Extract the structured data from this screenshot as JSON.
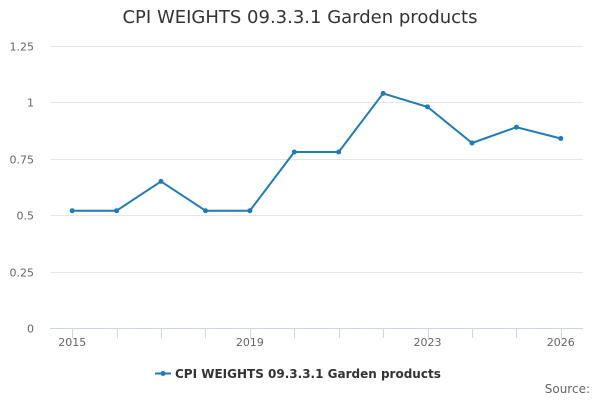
{
  "chart_data": {
    "type": "line",
    "title": "CPI WEIGHTS 09.3.3.1 Garden products",
    "xlabel": "",
    "ylabel": "",
    "x": [
      2015,
      2016,
      2017,
      2018,
      2019,
      2020,
      2021,
      2022,
      2023,
      2024,
      2025,
      2026
    ],
    "x_tick_labels": [
      "2015",
      "2019",
      "2023",
      "2026"
    ],
    "x_tick_values": [
      2015,
      2019,
      2023,
      2026
    ],
    "y_ticks": [
      0,
      0.25,
      0.5,
      0.75,
      1,
      1.25
    ],
    "y_tick_labels": [
      "0",
      "0.25",
      "0.5",
      "0.75",
      "1",
      "1.25"
    ],
    "ylim": [
      0,
      1.25
    ],
    "grid": true,
    "legend_position": "bottom-center",
    "series": [
      {
        "name": "CPI WEIGHTS 09.3.3.1 Garden products",
        "color": "#1f7cb6",
        "values": [
          0.52,
          0.52,
          0.65,
          0.52,
          0.52,
          0.78,
          0.78,
          1.04,
          0.98,
          0.82,
          0.89,
          0.84
        ]
      }
    ]
  },
  "source_label": "Source:"
}
